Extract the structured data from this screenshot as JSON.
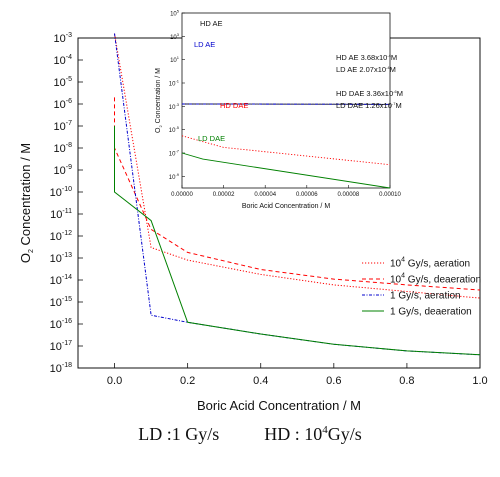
{
  "chart_data": [
    {
      "type": "line",
      "xlabel": "Boric Acid Concentration / M",
      "ylabel": "O2 Concentration / M",
      "xlim": [
        -0.1,
        1.0
      ],
      "ylim_log10": [
        -18,
        -3
      ],
      "ylog": true,
      "x_ticks": [
        0.0,
        0.2,
        0.4,
        0.6,
        0.8,
        1.0
      ],
      "x_tick_labels": [
        "0.0",
        "0.2",
        "0.4",
        "0.6",
        "0.8",
        "1.0"
      ],
      "y_tick_exponents": [
        -3,
        -4,
        -5,
        -6,
        -7,
        -8,
        -9,
        -10,
        -11,
        -12,
        -13,
        -14,
        -15,
        -16,
        -17,
        -18
      ],
      "legend_position": "right",
      "series": [
        {
          "name_base": "10",
          "name_sup": "4",
          "name_rest": " Gy/s, aeration",
          "color": "#ff0000",
          "dash": "dotted",
          "x": [
            0.0,
            0.1,
            0.2,
            0.4,
            0.6,
            0.8,
            1.0
          ],
          "y": [
            0.0016,
            3e-13,
            8e-14,
            1.8e-14,
            6e-15,
            3e-15,
            1.5e-15
          ]
        },
        {
          "name_base": "10",
          "name_sup": "4",
          "name_rest": " Gy/s, deaeration",
          "color": "#ff0000",
          "dash": "dashed",
          "x": [
            0.0,
            0.0,
            0.1,
            0.2,
            0.4,
            0.6,
            0.8,
            1.0
          ],
          "y": [
            2e-06,
            1e-08,
            2e-12,
            1.8e-13,
            3e-14,
            1.1e-14,
            6e-15,
            3.5e-15
          ]
        },
        {
          "name_base": "1 Gy/s, aeration",
          "name_sup": "",
          "name_rest": "",
          "color": "#0000cc",
          "dash": "dashdot",
          "x": [
            0.0,
            0.1,
            0.2,
            0.4,
            0.6,
            0.8,
            1.0
          ],
          "y": [
            0.0016,
            2.5e-16,
            1.2e-16,
            3.5e-17,
            1.2e-17,
            6e-18,
            4e-18
          ]
        },
        {
          "name_base": "1 Gy/s, deaeration",
          "name_sup": "",
          "name_rest": "",
          "color": "#008000",
          "dash": "solid",
          "x": [
            0.0,
            0.0,
            0.1,
            0.2,
            0.4,
            0.6,
            0.8,
            1.0
          ],
          "y": [
            1e-07,
            1e-10,
            5e-12,
            1.2e-16,
            3.5e-17,
            1.2e-17,
            6e-18,
            4e-18
          ]
        }
      ]
    },
    {
      "type": "line",
      "xlabel": "Boric Acid Concentration / M",
      "ylabel": "O2 Concentration / M",
      "xlim": [
        0.0,
        0.0001
      ],
      "ylim_log10": [
        -10,
        5
      ],
      "ylog": true,
      "x_tick_labels": [
        "0.00000",
        "0.00002",
        "0.00004",
        "0.00006",
        "0.00008",
        "0.00010"
      ],
      "y_tick_exponents": [
        5,
        3,
        1,
        -1,
        -3,
        -5,
        -7,
        -9
      ],
      "annotations": [
        {
          "text": "HD AE",
          "color": "#111111"
        },
        {
          "text": "LD AE",
          "color": "#0000cc"
        },
        {
          "text": "HD DAE",
          "color": "#ff0000"
        },
        {
          "text": "LD DAE",
          "color": "#008000"
        }
      ],
      "values_text": [
        {
          "label": "HD AE",
          "mant": "3.68x10",
          "exp": "-4",
          "unit": "M"
        },
        {
          "label": "LD AE",
          "mant": "2.07x10",
          "exp": "-4",
          "unit": "M"
        },
        {
          "label": "HD DAE",
          "mant": "3.36x10",
          "exp": "-6",
          "unit": "M"
        },
        {
          "label": "LD DAE",
          "mant": "1.26x10",
          "exp": "-7",
          "unit": "M"
        }
      ],
      "series": [
        {
          "label": "HD AE",
          "color": "#111111",
          "dash": "solid",
          "x": [
            0.0,
            0.0001
          ],
          "y": [
            0.0016,
            0.0015
          ]
        },
        {
          "label": "LD AE",
          "color": "#0000cc",
          "dash": "dashdot",
          "x": [
            0.0,
            0.0001
          ],
          "y": [
            0.0016,
            0.0015
          ]
        },
        {
          "label": "HD DAE",
          "color": "#ff0000",
          "dash": "dotted",
          "x": [
            0.0,
            2e-05,
            0.0001
          ],
          "y": [
            3e-06,
            3e-07,
            1e-08
          ]
        },
        {
          "label": "LD DAE",
          "color": "#008000",
          "dash": "solid",
          "x": [
            0.0,
            1e-05,
            0.0001
          ],
          "y": [
            1e-07,
            3e-08,
            1e-10
          ]
        }
      ]
    }
  ],
  "caption": {
    "ld_text": "LD :1 Gy/s",
    "hd_prefix": "HD : 10",
    "hd_sup": "4",
    "hd_suffix": "Gy/s"
  }
}
